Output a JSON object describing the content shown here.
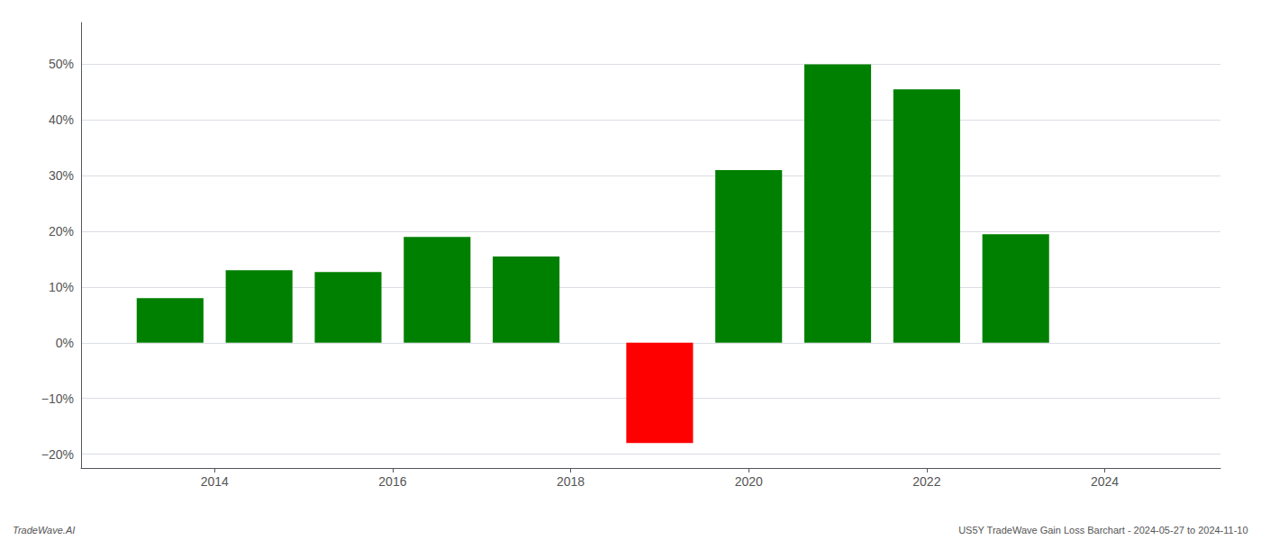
{
  "chart_data": {
    "type": "bar",
    "x": [
      2013.5,
      2014.5,
      2015.5,
      2016.5,
      2017.5,
      2019.0,
      2020.0,
      2021.0,
      2022.0,
      2023.0
    ],
    "values": [
      0.08,
      0.13,
      0.127,
      0.19,
      0.155,
      -0.18,
      0.31,
      0.5,
      0.455,
      0.195
    ],
    "colors": [
      "#008000",
      "#008000",
      "#008000",
      "#008000",
      "#008000",
      "#ff0000",
      "#008000",
      "#008000",
      "#008000",
      "#008000"
    ],
    "xlim": [
      2012.5,
      2025.3
    ],
    "xticks": [
      2014,
      2016,
      2018,
      2020,
      2022,
      2024
    ],
    "ylim": [
      -0.225,
      0.575
    ],
    "yticks": [
      {
        "value": -0.2,
        "label": "−20%"
      },
      {
        "value": -0.1,
        "label": "−10%"
      },
      {
        "value": 0.0,
        "label": "0%"
      },
      {
        "value": 0.1,
        "label": "10%"
      },
      {
        "value": 0.2,
        "label": "20%"
      },
      {
        "value": 0.3,
        "label": "30%"
      },
      {
        "value": 0.4,
        "label": "40%"
      },
      {
        "value": 0.5,
        "label": "50%"
      }
    ],
    "grid": true,
    "annotations": [
      "TradeWave.AI",
      "US5Y TradeWave Gain Loss Barchart - 2024-05-27 to 2024-11-10"
    ]
  }
}
